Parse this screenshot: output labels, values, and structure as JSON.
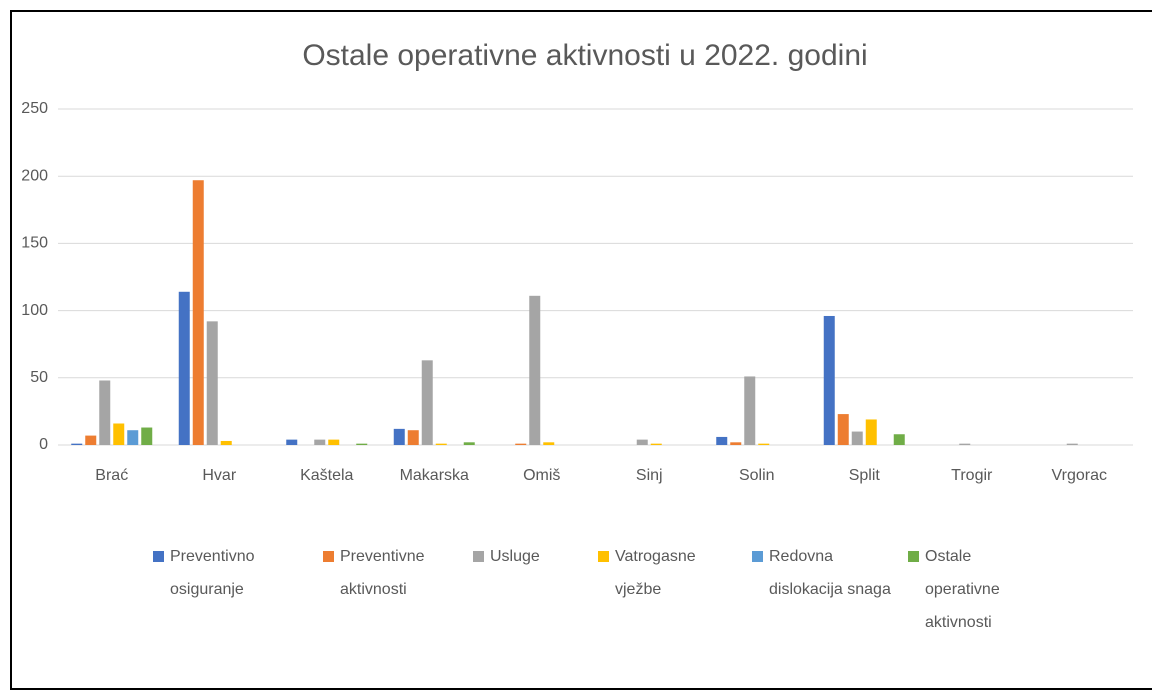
{
  "chart_data": {
    "type": "bar",
    "title": "Ostale operativne aktivnosti u 2022. godini",
    "categories": [
      "Brać",
      "Hvar",
      "Kaštela",
      "Makarska",
      "Omiš",
      "Sinj",
      "Solin",
      "Split",
      "Trogir",
      "Vrgorac"
    ],
    "series": [
      {
        "name": "Preventivno osiguranje",
        "color": "#4472c4",
        "values": [
          1,
          114,
          4,
          12,
          0,
          0,
          6,
          96,
          0,
          0
        ]
      },
      {
        "name": "Preventivne aktivnosti",
        "color": "#ed7d31",
        "values": [
          7,
          197,
          0,
          11,
          1,
          0,
          2,
          23,
          0,
          0
        ]
      },
      {
        "name": "Usluge",
        "color": "#a5a5a5",
        "values": [
          48,
          92,
          4,
          63,
          111,
          4,
          51,
          10,
          1,
          1
        ]
      },
      {
        "name": "Vatrogasne vježbe",
        "color": "#ffc000",
        "values": [
          16,
          3,
          4,
          1,
          2,
          1,
          1,
          19,
          0,
          0
        ]
      },
      {
        "name": "Redovna dislokacija snaga",
        "color": "#5b9bd5",
        "values": [
          11,
          0,
          0,
          0,
          0,
          0,
          0,
          0,
          0,
          0
        ]
      },
      {
        "name": "Ostale operativne aktivnosti",
        "color": "#70ad47",
        "values": [
          13,
          0,
          1,
          2,
          0,
          0,
          0,
          8,
          0,
          0
        ]
      }
    ],
    "ylim": [
      0,
      250
    ],
    "yticks": [
      0,
      50,
      100,
      150,
      200,
      250
    ],
    "grid": true,
    "legend": "bottom"
  }
}
